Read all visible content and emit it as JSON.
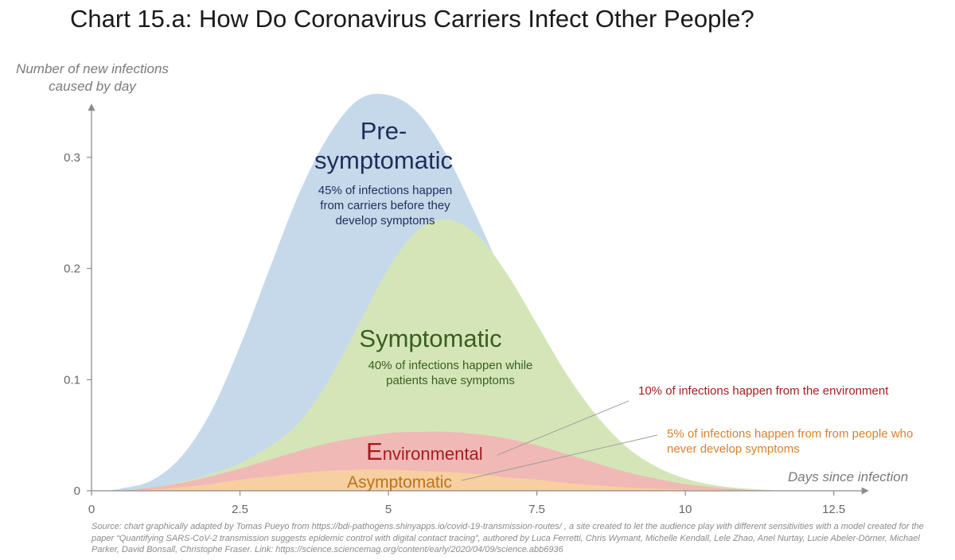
{
  "title": "Chart 15.a: How Do Coronavirus Carriers Infect Other People?",
  "source": "Source: chart graphically adapted by Tomas Pueyo from https://bdi-pathogens.shinyapps.io/covid-19-transmission-routes/ , a site created to let the audience play with different sensitivities with a model created for the paper “Quantifying SARS-CoV-2 transmission suggests epidemic control with digital contact tracing”, authored by Luca Ferretti, Chris Wymant, Michelle Kendall, Lele Zhao, Anel Nurtay, Lucie Abeler-Dörner, Michael Parker, David Bonsall, Christophe Fraser. Link: https://science.sciencemag.org/content/early/2020/04/09/science.abb6936",
  "colors": {
    "presymptomatic": "#c6d9ea",
    "symptomatic": "#d4e6b8",
    "environmental": "#f0b9b6",
    "asymptomatic": "#f7cfa0",
    "presymptomatic_text": "#1f2d5c",
    "symptomatic_text": "#3a5e1f",
    "environmental_text": "#a31d20",
    "asymptomatic_text": "#b8741d",
    "axis": "#8c8c8c"
  },
  "chart_data": {
    "type": "area",
    "title": "Chart 15.a: How Do Coronavirus Carriers Infect Other People?",
    "xlabel": "Days since infection",
    "ylabel": "Number of new infections caused by day",
    "xlim": [
      0,
      13
    ],
    "ylim": [
      0,
      0.37
    ],
    "x_ticks": [
      0,
      2.5,
      5,
      7.5,
      10,
      12.5
    ],
    "x_tick_labels": [
      "0",
      "2.5",
      "5",
      "7.5",
      "10",
      "12.5"
    ],
    "y_ticks": [
      0,
      0.1,
      0.2,
      0.3
    ],
    "y_tick_labels": [
      "0",
      "0.1",
      "0.2",
      "0.3"
    ],
    "stacking": "stacked",
    "x": [
      0.2,
      0.5,
      1,
      1.5,
      2,
      2.5,
      3,
      3.5,
      4,
      4.5,
      5,
      5.5,
      6,
      6.5,
      7,
      7.5,
      8,
      8.5,
      9,
      9.5,
      10,
      10.5,
      11,
      11.6
    ],
    "series": [
      {
        "name": "Asymptomatic",
        "stacked_top": [
          0,
          0.0,
          0.001,
          0.003,
          0.006,
          0.01,
          0.013,
          0.016,
          0.018,
          0.019,
          0.019,
          0.018,
          0.017,
          0.015,
          0.012,
          0.01,
          0.007,
          0.005,
          0.003,
          0.002,
          0.001,
          0.001,
          0.0,
          0
        ]
      },
      {
        "name": "Environmental",
        "stacked_top": [
          0,
          0.0,
          0.003,
          0.007,
          0.013,
          0.02,
          0.028,
          0.036,
          0.043,
          0.048,
          0.052,
          0.053,
          0.053,
          0.051,
          0.047,
          0.041,
          0.033,
          0.025,
          0.017,
          0.011,
          0.006,
          0.003,
          0.001,
          0
        ]
      },
      {
        "name": "Symptomatic",
        "stacked_top": [
          0,
          0.0,
          0.003,
          0.008,
          0.015,
          0.025,
          0.04,
          0.062,
          0.1,
          0.15,
          0.2,
          0.235,
          0.244,
          0.23,
          0.195,
          0.15,
          0.105,
          0.068,
          0.04,
          0.022,
          0.011,
          0.005,
          0.002,
          0
        ]
      },
      {
        "name": "Pre-symptomatic",
        "stacked_top": [
          0,
          0.002,
          0.009,
          0.03,
          0.07,
          0.13,
          0.2,
          0.268,
          0.32,
          0.352,
          0.356,
          0.34,
          0.3,
          0.245,
          0.185,
          0.13,
          0.086,
          0.053,
          0.031,
          0.017,
          0.009,
          0.004,
          0.002,
          0
        ]
      }
    ],
    "annotations": [
      {
        "key": "pre",
        "label": "Pre-\nsymptomatic",
        "note": "45% of infections happen\nfrom carriers before they\ndevelop symptoms"
      },
      {
        "key": "sym",
        "label": "Symptomatic",
        "note": "40% of infections happen while\npatients have symptoms"
      },
      {
        "key": "env",
        "label": "Environmental",
        "note": "10% of infections happen from the environment"
      },
      {
        "key": "asym",
        "label": "Asymptomatic",
        "note": "5% of infections happen from from people who\nnever develop symptoms"
      }
    ],
    "legend": "none",
    "grid": false
  }
}
